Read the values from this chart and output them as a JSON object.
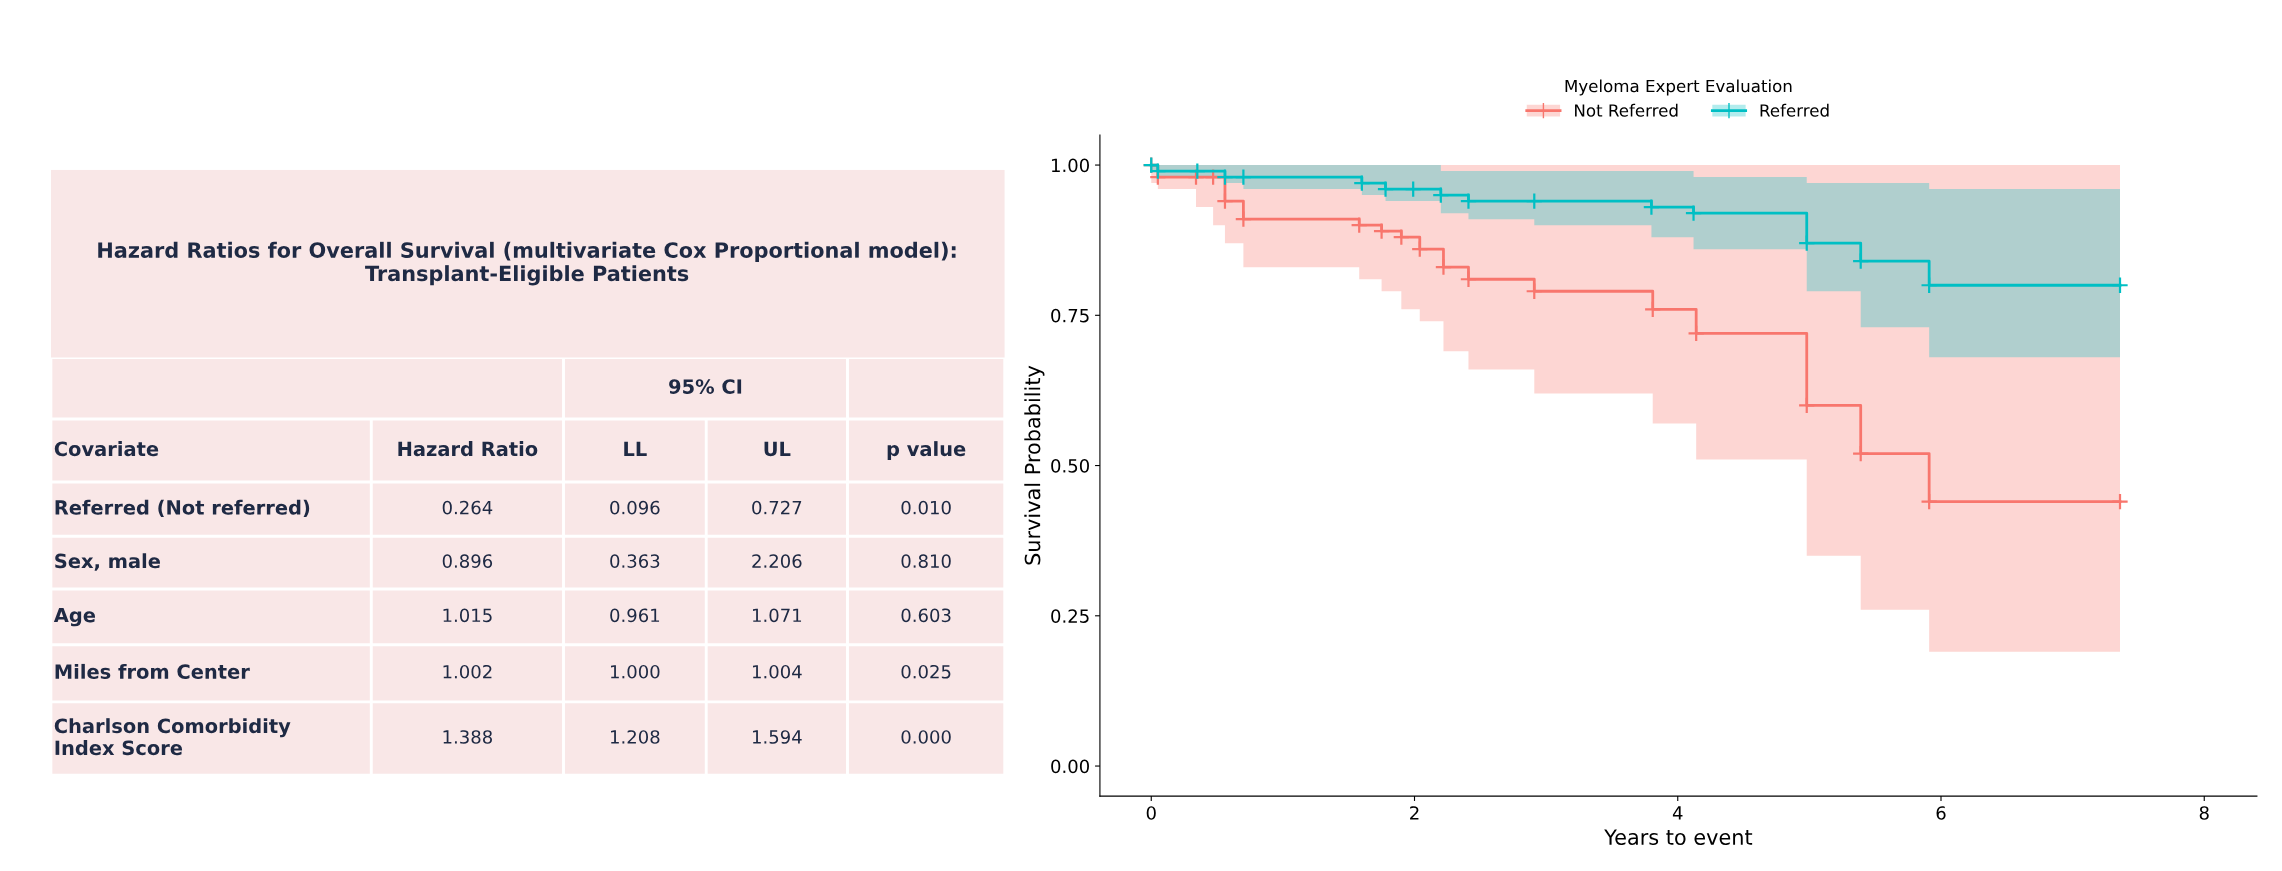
{
  "chart_data": [
    {
      "type": "other",
      "title": "Hazard Ratios for Overall Survival (multivariate Cox Proportional model):\nTransplant-Eligible Patients",
      "annotations": [
        "95% CI",
        "Covariate",
        "Hazard Ratio",
        "LL",
        "UL",
        "p value",
        "Referred (Not referred)",
        "0.264",
        "0.096",
        "0.727",
        "0.010",
        "Sex, male",
        "0.896",
        "0.363",
        "2.206",
        "0.810",
        "Age",
        "1.015",
        "0.961",
        "1.071",
        "0.603",
        "Miles from Center",
        "1.002",
        "1.000",
        "1.004",
        "0.025",
        "Charlson Comorbidity\nIndex Score",
        "1.388",
        "1.208",
        "1.594",
        "0.000"
      ]
    },
    {
      "type": "step",
      "xlabel": "Years to event",
      "ylabel": "Survival Probability",
      "legend_title": "Myeloma Expert Evaluation",
      "legend": "top",
      "marker": "cross",
      "grid": false,
      "xlim": [
        -0.39,
        8.4
      ],
      "xticks": [
        0,
        2,
        4,
        6,
        8
      ],
      "ylim": [
        -0.05,
        1.05
      ],
      "yticks": [
        {
          "value": 0,
          "label": "0.00"
        },
        {
          "value": 0.25,
          "label": "0.25"
        },
        {
          "value": 0.5,
          "label": "0.50"
        },
        {
          "value": 0.75,
          "label": "0.75"
        },
        {
          "value": 1,
          "label": "1.00"
        }
      ],
      "series": [
        {
          "name": "Not Referred",
          "color": "#f8766d",
          "x": [
            0,
            0.05,
            0.34,
            0.47,
            0.56,
            0.7,
            1.58,
            1.75,
            1.9,
            2.04,
            2.22,
            2.41,
            2.91,
            3.81,
            4.14,
            4.98,
            5.39,
            5.91,
            7.36
          ],
          "values": [
            1.0,
            0.98,
            0.98,
            0.98,
            0.94,
            0.91,
            0.9,
            0.89,
            0.88,
            0.86,
            0.83,
            0.81,
            0.79,
            0.76,
            0.72,
            0.6,
            0.52,
            0.44,
            0.44
          ],
          "lower": [
            0.97,
            0.96,
            0.93,
            0.9,
            0.87,
            0.83,
            0.81,
            0.79,
            0.76,
            0.74,
            0.69,
            0.66,
            0.62,
            0.57,
            0.51,
            0.35,
            0.26,
            0.19,
            0.19
          ],
          "upper": [
            1,
            1,
            1,
            1,
            1,
            1,
            1,
            1,
            1,
            1,
            1,
            1,
            1,
            1,
            1,
            1,
            1,
            1,
            1
          ]
        },
        {
          "name": "Referred",
          "color": "#00bfc4",
          "x": [
            0,
            0.05,
            0.35,
            0.56,
            0.7,
            1.6,
            1.78,
            1.99,
            2.2,
            2.41,
            2.91,
            3.8,
            4.12,
            4.98,
            5.39,
            5.91,
            7.36
          ],
          "values": [
            1.0,
            0.99,
            0.99,
            0.98,
            0.98,
            0.97,
            0.96,
            0.96,
            0.95,
            0.94,
            0.94,
            0.93,
            0.92,
            0.87,
            0.84,
            0.8,
            0.8
          ],
          "lower": [
            0.99,
            0.98,
            0.98,
            0.97,
            0.96,
            0.95,
            0.94,
            0.94,
            0.92,
            0.91,
            0.9,
            0.88,
            0.86,
            0.79,
            0.73,
            0.68,
            0.68
          ],
          "upper": [
            1,
            1,
            1,
            1,
            1,
            1,
            1,
            1,
            0.99,
            0.99,
            0.99,
            0.99,
            0.98,
            0.97,
            0.97,
            0.96,
            0.96
          ]
        }
      ]
    }
  ]
}
